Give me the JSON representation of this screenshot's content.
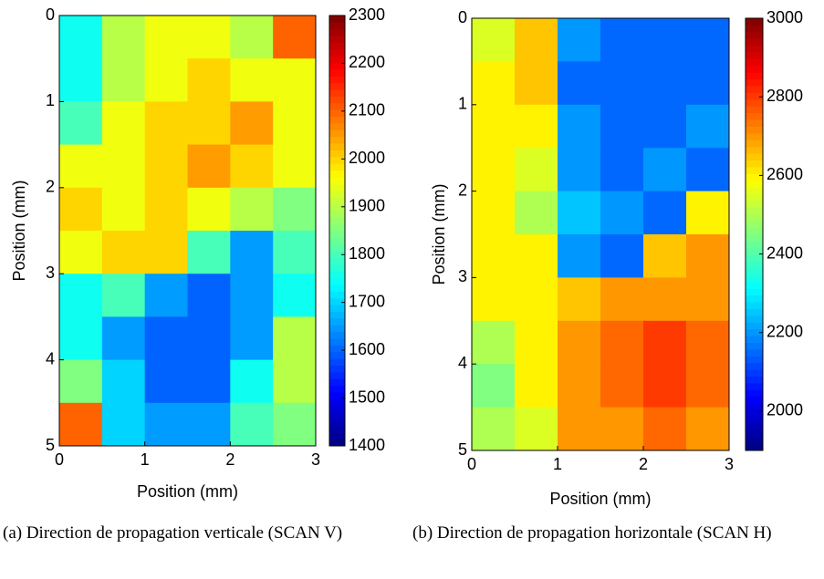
{
  "chart_data": [
    {
      "type": "heatmap",
      "xlabel": "Position (mm)",
      "ylabel": "Position (mm)",
      "caption": "(a) Direction de propagation verticale (SCAN V)",
      "colormap": "jet",
      "xlim": [
        0,
        3
      ],
      "xticks": [
        0,
        1,
        2,
        3
      ],
      "ylim": [
        5,
        0
      ],
      "yticks": [
        0,
        1,
        2,
        3,
        4,
        5
      ],
      "clim": [
        1400,
        2300
      ],
      "cticks": [
        1400,
        1500,
        1600,
        1700,
        1800,
        1900,
        2000,
        2100,
        2200,
        2300
      ],
      "z": [
        [
          1750,
          1900,
          1950,
          1950,
          1900,
          2100
        ],
        [
          1750,
          1900,
          1950,
          2000,
          1950,
          1950
        ],
        [
          1800,
          1950,
          2000,
          2000,
          2050,
          1950
        ],
        [
          1950,
          1950,
          2000,
          2050,
          2000,
          1950
        ],
        [
          2000,
          1950,
          2000,
          1950,
          1900,
          1850
        ],
        [
          1950,
          2000,
          2000,
          1800,
          1650,
          1800
        ],
        [
          1750,
          1800,
          1650,
          1600,
          1650,
          1750
        ],
        [
          1750,
          1650,
          1600,
          1600,
          1650,
          1900
        ],
        [
          1850,
          1700,
          1600,
          1600,
          1750,
          1900
        ],
        [
          2100,
          1700,
          1650,
          1650,
          1800,
          1850
        ]
      ]
    },
    {
      "type": "heatmap",
      "xlabel": "Position (mm)",
      "ylabel": "Position (mm)",
      "caption": "(b) Direction de propagation horizontale (SCAN H)",
      "colormap": "jet",
      "xlim": [
        0,
        3
      ],
      "xticks": [
        0,
        1,
        2,
        3
      ],
      "ylim": [
        5,
        0
      ],
      "yticks": [
        0,
        1,
        2,
        3,
        4,
        5
      ],
      "clim": [
        1900,
        3000
      ],
      "cticks": [
        2000,
        2200,
        2400,
        2600,
        2800,
        3000
      ],
      "z": [
        [
          2550,
          2650,
          2200,
          2150,
          2150,
          2150
        ],
        [
          2600,
          2650,
          2150,
          2150,
          2150,
          2150
        ],
        [
          2600,
          2600,
          2200,
          2150,
          2150,
          2200
        ],
        [
          2600,
          2550,
          2200,
          2150,
          2200,
          2150
        ],
        [
          2600,
          2500,
          2250,
          2200,
          2150,
          2600
        ],
        [
          2600,
          2600,
          2200,
          2150,
          2650,
          2700
        ],
        [
          2600,
          2600,
          2650,
          2700,
          2700,
          2700
        ],
        [
          2500,
          2600,
          2700,
          2750,
          2800,
          2750
        ],
        [
          2450,
          2600,
          2700,
          2750,
          2800,
          2750
        ],
        [
          2500,
          2550,
          2700,
          2700,
          2750,
          2700
        ]
      ]
    }
  ]
}
